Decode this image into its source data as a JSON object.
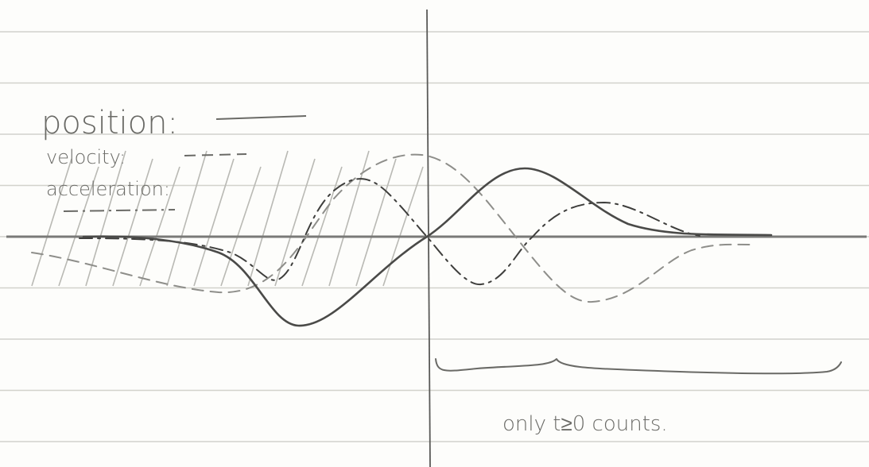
{
  "legend": [
    {
      "label": "position:"
    },
    {
      "label": "velocity:"
    },
    {
      "label": "acceleration:"
    }
  ],
  "annotation": "only t≥0 counts."
}
